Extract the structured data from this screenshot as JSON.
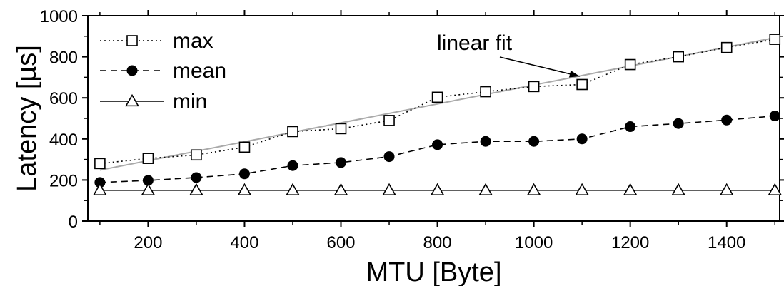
{
  "chart_data": {
    "type": "line",
    "xlabel": "MTU [Byte]",
    "ylabel": "Latency [µs]",
    "xlim": [
      75,
      1510
    ],
    "ylim": [
      0,
      1000
    ],
    "x_ticks": [
      200,
      400,
      600,
      800,
      1000,
      1200,
      1400
    ],
    "y_ticks": [
      0,
      200,
      400,
      600,
      800,
      1000
    ],
    "grid": false,
    "legend_position": "top-left",
    "x": [
      100,
      200,
      300,
      400,
      500,
      600,
      700,
      800,
      900,
      1000,
      1100,
      1200,
      1300,
      1400,
      1500
    ],
    "series": [
      {
        "name": "max",
        "marker": "open-square",
        "line_style": "dotted",
        "color": "#000000",
        "values": [
          280,
          305,
          322,
          360,
          436,
          450,
          490,
          603,
          630,
          655,
          665,
          762,
          800,
          845,
          885
        ]
      },
      {
        "name": "mean",
        "marker": "filled-circle",
        "line_style": "dashed",
        "color": "#000000",
        "values": [
          188,
          198,
          212,
          230,
          270,
          285,
          314,
          372,
          388,
          388,
          400,
          460,
          475,
          492,
          512
        ]
      },
      {
        "name": "min",
        "marker": "open-triangle",
        "line_style": "solid",
        "color": "#000000",
        "values": [
          150,
          150,
          150,
          150,
          150,
          150,
          150,
          150,
          150,
          150,
          150,
          150,
          150,
          150,
          150
        ]
      }
    ],
    "fit_line": {
      "label": "linear fit",
      "color": "#aaaaaa",
      "x": [
        100,
        1500
      ],
      "y": [
        248,
        893
      ]
    },
    "annotation": {
      "text": "linear fit",
      "arrow_to": [
        1095,
        705
      ]
    }
  }
}
